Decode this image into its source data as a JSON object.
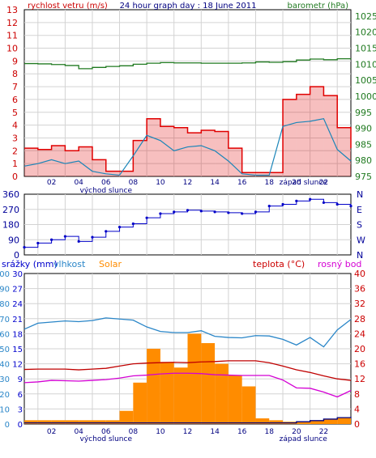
{
  "chart_data": [
    {
      "type": "line",
      "title": "24 hour graph day : 18 June 2011",
      "y_left_label": "rychlost vetru (m/s)",
      "y_right_label": "barometr (hPa)",
      "x_ticks": [
        "02",
        "04",
        "06",
        "08",
        "10",
        "12",
        "14",
        "16",
        "18",
        "20",
        "22"
      ],
      "annotations": [
        "východ slunce",
        "západ slunce"
      ],
      "y_left_ticks": [
        "0",
        "1",
        "2",
        "3",
        "4",
        "5",
        "6",
        "7",
        "8",
        "9",
        "10",
        "11",
        "12",
        "13"
      ],
      "y_left_range": [
        0,
        13
      ],
      "y_right_ticks": [
        "975",
        "980",
        "985",
        "990",
        "995",
        "1000",
        "1005",
        "1010",
        "1015",
        "1020",
        "1025"
      ],
      "y_right_range": [
        975,
        1027
      ],
      "colors": {
        "gust": "#e00000",
        "speed": "#1a85b8",
        "pressure": "#207a20",
        "left_axis": "#cc0000",
        "right_axis": "#207a20"
      },
      "x_hours": [
        0,
        1,
        2,
        3,
        4,
        5,
        6,
        7,
        8,
        9,
        10,
        11,
        12,
        13,
        14,
        15,
        16,
        17,
        18,
        19,
        20,
        21,
        22,
        23,
        24
      ],
      "series": [
        {
          "role": "gust",
          "values": [
            2.2,
            2.1,
            2.4,
            2.0,
            2.3,
            1.3,
            0.4,
            0.4,
            2.8,
            4.5,
            3.9,
            3.8,
            3.4,
            3.6,
            3.5,
            2.2,
            0.3,
            0.3,
            0.3,
            6.0,
            6.4,
            7.0,
            6.3,
            3.8,
            2.2
          ]
        },
        {
          "role": "speed",
          "values": [
            0.8,
            1.0,
            1.3,
            1.0,
            1.2,
            0.4,
            0.2,
            0.1,
            1.6,
            3.2,
            2.8,
            2.0,
            2.3,
            2.4,
            2.0,
            1.2,
            0.2,
            0.1,
            0.1,
            3.9,
            4.2,
            4.3,
            4.5,
            2.1,
            1.2
          ]
        },
        {
          "role": "pressure",
          "values": [
            1010.2,
            1010.1,
            1009.9,
            1009.6,
            1008.6,
            1009.0,
            1009.3,
            1009.5,
            1010.0,
            1010.3,
            1010.5,
            1010.4,
            1010.4,
            1010.3,
            1010.3,
            1010.3,
            1010.4,
            1010.7,
            1010.6,
            1010.8,
            1011.3,
            1011.6,
            1011.4,
            1011.7,
            1011.5
          ]
        }
      ]
    },
    {
      "type": "scatter",
      "y_left_ticks": [
        "0",
        "90",
        "180",
        "270",
        "360"
      ],
      "y_left_range": [
        0,
        360
      ],
      "y_right_ticks": [
        "N",
        "W",
        "S",
        "E",
        "N"
      ],
      "x_ticks": [
        "02",
        "04",
        "06",
        "08",
        "10",
        "12",
        "14",
        "16",
        "18",
        "20",
        "22"
      ],
      "colors": {
        "direction": "#0000c8",
        "left_axis": "#000099",
        "right_axis": "#000099"
      },
      "x_hours": [
        0,
        1,
        2,
        3,
        4,
        5,
        6,
        7,
        8,
        9,
        10,
        11,
        12,
        13,
        14,
        15,
        16,
        17,
        18,
        19,
        20,
        21,
        22,
        23,
        24
      ],
      "series": [
        {
          "role": "direction",
          "values": [
            45,
            70,
            90,
            110,
            80,
            105,
            140,
            165,
            185,
            220,
            245,
            255,
            265,
            260,
            255,
            250,
            245,
            255,
            290,
            300,
            320,
            330,
            310,
            300,
            290
          ]
        }
      ]
    },
    {
      "type": "area",
      "legend_left": [
        "srážky (mm)",
        "vlhkost",
        "Solar"
      ],
      "legend_right": [
        "teplota (°C)",
        "rosný bod"
      ],
      "y_left_ticks_a": [
        "0",
        "3",
        "6",
        "9",
        "12",
        "15",
        "18",
        "21",
        "24",
        "27",
        "30"
      ],
      "y_left_ticks_b": [
        "0",
        "10",
        "20",
        "30",
        "40",
        "50",
        "60",
        "70",
        "80",
        "90",
        "100"
      ],
      "y_right_ticks": [
        "0",
        "4",
        "8",
        "12",
        "16",
        "20",
        "24",
        "28",
        "32",
        "36",
        "40"
      ],
      "y_range": [
        0,
        40
      ],
      "x_ticks": [
        "02",
        "04",
        "06",
        "08",
        "10",
        "12",
        "14",
        "16",
        "18",
        "20",
        "22"
      ],
      "annotations": [
        "východ slunce",
        "západ slunce"
      ],
      "colors": {
        "solar": "#ff8c00",
        "humidity": "#2a86c8",
        "temperature": "#c00000",
        "dewpoint": "#d400d4",
        "rain": "#000080",
        "rain_axis": "#0000cc",
        "humidity_axis": "#2a86c8",
        "temp_axis": "#cc0000"
      },
      "x_hours": [
        0,
        1,
        2,
        3,
        4,
        5,
        6,
        7,
        8,
        9,
        10,
        11,
        12,
        13,
        14,
        15,
        16,
        17,
        18,
        19,
        20,
        21,
        22,
        23,
        24
      ],
      "series": [
        {
          "role": "humidity",
          "values": [
            25.2,
            26.8,
            27.1,
            27.4,
            27.2,
            27.5,
            28.2,
            27.9,
            27.6,
            25.8,
            24.6,
            24.3,
            24.3,
            24.8,
            23.3,
            23.0,
            22.9,
            23.5,
            23.4,
            22.5,
            21.0,
            23.0,
            20.5,
            25.0,
            27.8
          ]
        },
        {
          "role": "temperature",
          "values": [
            14.5,
            14.6,
            14.6,
            14.6,
            14.4,
            14.6,
            14.8,
            15.4,
            16.0,
            16.2,
            16.3,
            16.4,
            16.3,
            16.5,
            16.6,
            16.8,
            16.8,
            16.8,
            16.3,
            15.4,
            14.4,
            13.7,
            12.8,
            12.0,
            11.6
          ]
        },
        {
          "role": "dewpoint",
          "values": [
            11.0,
            11.2,
            11.6,
            11.5,
            11.4,
            11.6,
            11.8,
            12.2,
            12.8,
            13.0,
            13.3,
            13.5,
            13.5,
            13.4,
            13.1,
            13.0,
            12.9,
            12.9,
            12.9,
            11.7,
            9.6,
            9.5,
            8.5,
            7.2,
            8.9
          ]
        },
        {
          "role": "solar",
          "values": [
            1.0,
            1.0,
            1.0,
            1.0,
            1.0,
            1.0,
            1.0,
            3.5,
            11.0,
            20.0,
            16.5,
            15.0,
            24.0,
            21.5,
            16.0,
            13.0,
            10.0,
            1.5,
            1.0,
            0.6,
            0.6,
            0.9,
            1.3,
            1.7,
            1.9
          ]
        },
        {
          "role": "rain",
          "values": [
            0.3,
            0.3,
            0.3,
            0.3,
            0.3,
            0.3,
            0.3,
            0.3,
            0.3,
            0.3,
            0.3,
            0.3,
            0.3,
            0.3,
            0.3,
            0.3,
            0.3,
            0.3,
            0.3,
            0.3,
            0.6,
            0.9,
            1.3,
            1.7,
            1.9
          ]
        }
      ]
    }
  ]
}
